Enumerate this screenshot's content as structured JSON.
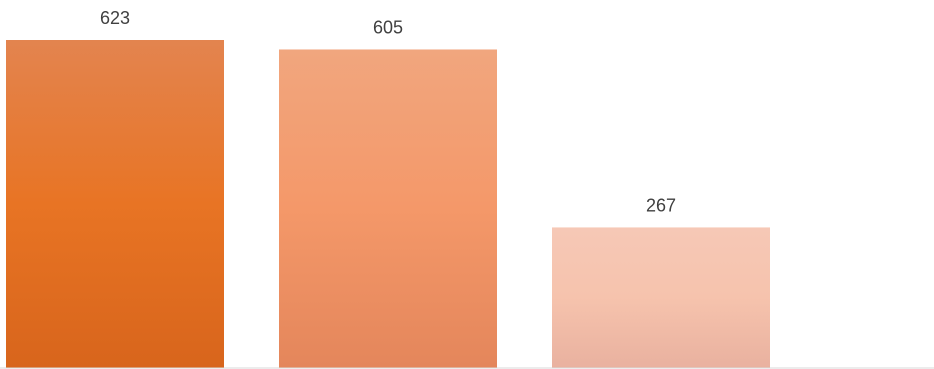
{
  "chart_data": {
    "type": "bar",
    "categories": [
      "",
      "",
      ""
    ],
    "values": [
      623,
      605,
      267
    ],
    "data_labels": [
      "623",
      "605",
      "267"
    ],
    "title": "",
    "xlabel": "",
    "ylabel": "",
    "ylim": [
      0,
      623
    ],
    "grid": false,
    "legend": "none",
    "bar_colors": [
      {
        "top": "#e3844f",
        "mid": "#e87424",
        "bottom": "#d8651c"
      },
      {
        "top": "#f1a67e",
        "mid": "#f49869",
        "bottom": "#e4865b"
      },
      {
        "top": "#f6c8b6",
        "mid": "#f6c3ad",
        "bottom": "#e9b19f"
      }
    ],
    "baseline_color": "#d9d9d9",
    "label_color": "#404040"
  }
}
